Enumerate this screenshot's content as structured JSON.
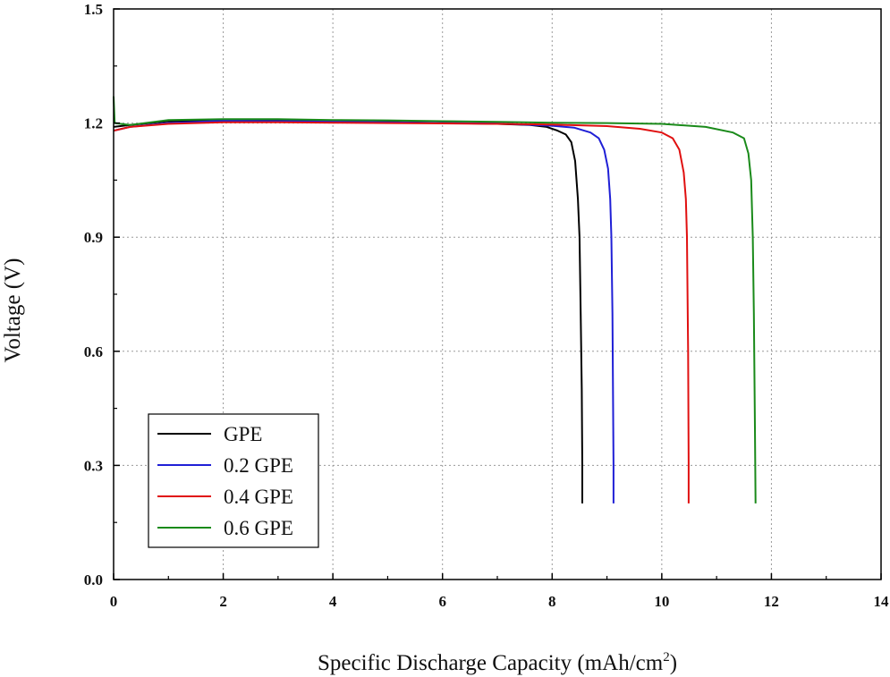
{
  "chart_data": {
    "type": "line",
    "title": "",
    "xlabel": "Specific Discharge Capacity (mAh/cm",
    "xlabel_sup": "2",
    "xlabel_suffix": ")",
    "ylabel": "Voltage (V)",
    "xlim": [
      0,
      14
    ],
    "ylim": [
      0,
      1.5
    ],
    "x_ticks": [
      "0",
      "2",
      "4",
      "6",
      "8",
      "10",
      "12",
      "14"
    ],
    "y_ticks": [
      "0.0",
      "0.3",
      "0.6",
      "0.9",
      "1.2",
      "1.5"
    ],
    "grid": true,
    "legend_position": "bottom-left",
    "series": [
      {
        "name": "GPE",
        "color": "#000000",
        "points": [
          [
            0,
            1.19
          ],
          [
            0.3,
            1.195
          ],
          [
            1,
            1.205
          ],
          [
            2,
            1.208
          ],
          [
            3,
            1.207
          ],
          [
            4,
            1.205
          ],
          [
            5,
            1.203
          ],
          [
            6,
            1.2
          ],
          [
            7,
            1.198
          ],
          [
            7.6,
            1.195
          ],
          [
            7.9,
            1.19
          ],
          [
            8.1,
            1.18
          ],
          [
            8.25,
            1.17
          ],
          [
            8.35,
            1.15
          ],
          [
            8.42,
            1.1
          ],
          [
            8.47,
            1.0
          ],
          [
            8.5,
            0.9
          ],
          [
            8.52,
            0.7
          ],
          [
            8.54,
            0.5
          ],
          [
            8.55,
            0.3
          ],
          [
            8.55,
            0.2
          ]
        ]
      },
      {
        "name": "0.2 GPE",
        "color": "#1f1fd6",
        "points": [
          [
            0,
            1.18
          ],
          [
            0.3,
            1.19
          ],
          [
            1,
            1.2
          ],
          [
            2,
            1.206
          ],
          [
            3,
            1.205
          ],
          [
            4,
            1.204
          ],
          [
            5,
            1.202
          ],
          [
            6,
            1.2
          ],
          [
            7,
            1.199
          ],
          [
            8,
            1.193
          ],
          [
            8.4,
            1.188
          ],
          [
            8.7,
            1.175
          ],
          [
            8.85,
            1.16
          ],
          [
            8.95,
            1.13
          ],
          [
            9.02,
            1.08
          ],
          [
            9.06,
            1.0
          ],
          [
            9.08,
            0.9
          ],
          [
            9.1,
            0.7
          ],
          [
            9.11,
            0.5
          ],
          [
            9.12,
            0.3
          ],
          [
            9.12,
            0.2
          ]
        ]
      },
      {
        "name": "0.4 GPE",
        "color": "#e01010",
        "points": [
          [
            0,
            1.18
          ],
          [
            0.3,
            1.19
          ],
          [
            1,
            1.198
          ],
          [
            2,
            1.202
          ],
          [
            3,
            1.202
          ],
          [
            4,
            1.201
          ],
          [
            5,
            1.2
          ],
          [
            6,
            1.199
          ],
          [
            7,
            1.198
          ],
          [
            8,
            1.196
          ],
          [
            9,
            1.192
          ],
          [
            9.6,
            1.185
          ],
          [
            10,
            1.175
          ],
          [
            10.2,
            1.16
          ],
          [
            10.32,
            1.13
          ],
          [
            10.4,
            1.07
          ],
          [
            10.44,
            1.0
          ],
          [
            10.46,
            0.9
          ],
          [
            10.48,
            0.6
          ],
          [
            10.49,
            0.3
          ],
          [
            10.49,
            0.2
          ]
        ]
      },
      {
        "name": "0.6 GPE",
        "color": "#1a8a1a",
        "points": [
          [
            0,
            1.27
          ],
          [
            0.02,
            1.2
          ],
          [
            0.3,
            1.195
          ],
          [
            1,
            1.208
          ],
          [
            2,
            1.21
          ],
          [
            3,
            1.21
          ],
          [
            4,
            1.208
          ],
          [
            5,
            1.207
          ],
          [
            6,
            1.205
          ],
          [
            7,
            1.203
          ],
          [
            8,
            1.201
          ],
          [
            9,
            1.2
          ],
          [
            10,
            1.198
          ],
          [
            10.8,
            1.19
          ],
          [
            11.3,
            1.175
          ],
          [
            11.5,
            1.16
          ],
          [
            11.58,
            1.12
          ],
          [
            11.63,
            1.05
          ],
          [
            11.66,
            0.9
          ],
          [
            11.68,
            0.7
          ],
          [
            11.7,
            0.4
          ],
          [
            11.71,
            0.2
          ]
        ]
      }
    ]
  }
}
